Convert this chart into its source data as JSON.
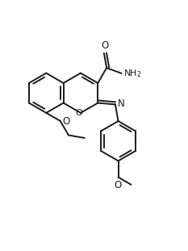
{
  "bg_color": "#ffffff",
  "line_color": "#1a1a1a",
  "line_width": 1.4,
  "figsize": [
    2.33,
    3.11
  ],
  "dpi": 100,
  "xlim": [
    0.0,
    4.8
  ],
  "ylim": [
    -0.2,
    5.6
  ]
}
